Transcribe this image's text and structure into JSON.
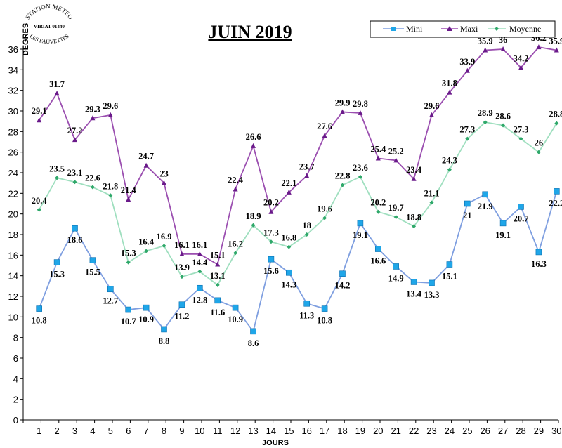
{
  "stamp": {
    "line1": "STATION METEO",
    "line2": "VIRIAT 01440",
    "line3": "LES FAUVETTES"
  },
  "chart_data": {
    "type": "line",
    "title": "JUIN 2019",
    "xlabel": "JOURS",
    "ylabel": "DEGRES",
    "ylim": [
      0,
      36
    ],
    "yticks": [
      0,
      2,
      4,
      6,
      8,
      10,
      12,
      14,
      16,
      18,
      20,
      22,
      24,
      26,
      28,
      30,
      32,
      34,
      36
    ],
    "grid": false,
    "legend_position": "top-right",
    "x": [
      1,
      2,
      3,
      4,
      5,
      6,
      7,
      8,
      9,
      10,
      11,
      12,
      13,
      14,
      15,
      16,
      17,
      18,
      19,
      20,
      21,
      22,
      23,
      24,
      25,
      26,
      27,
      28,
      29,
      30
    ],
    "series": [
      {
        "name": "Mini",
        "color": "#7f9fe0",
        "marker": "square",
        "marker_color": "#1fa6e8",
        "values": [
          10.8,
          15.3,
          18.6,
          15.5,
          12.7,
          10.7,
          10.9,
          8.8,
          11.2,
          12.8,
          11.6,
          10.9,
          8.6,
          15.6,
          14.3,
          11.3,
          10.8,
          14.2,
          19.1,
          16.6,
          14.9,
          13.4,
          13.3,
          15.1,
          21,
          21.9,
          19.1,
          20.7,
          16.3,
          22.2
        ]
      },
      {
        "name": "Maxi",
        "color": "#9b4fb0",
        "marker": "triangle",
        "marker_color": "#6a1a8a",
        "values": [
          29.1,
          31.7,
          27.2,
          29.3,
          29.6,
          21.4,
          24.7,
          23,
          16.1,
          16.1,
          15.1,
          22.4,
          26.6,
          20.2,
          22.1,
          23.7,
          27.6,
          29.9,
          29.8,
          25.4,
          25.2,
          23.4,
          29.6,
          31.8,
          33.9,
          35.9,
          36,
          34.2,
          36.2,
          35.9
        ]
      },
      {
        "name": "Moyenne",
        "color": "#9fdfbf",
        "marker": "diamond",
        "marker_color": "#2fa86a",
        "values": [
          20.4,
          23.5,
          23.1,
          22.6,
          21.8,
          15.3,
          16.4,
          16.9,
          13.9,
          14.4,
          13.1,
          16.2,
          18.9,
          17.3,
          16.8,
          18,
          19.6,
          22.8,
          23.6,
          20.2,
          19.7,
          18.8,
          21.1,
          24.3,
          27.3,
          28.9,
          28.6,
          27.3,
          26,
          28.8
        ]
      }
    ]
  }
}
